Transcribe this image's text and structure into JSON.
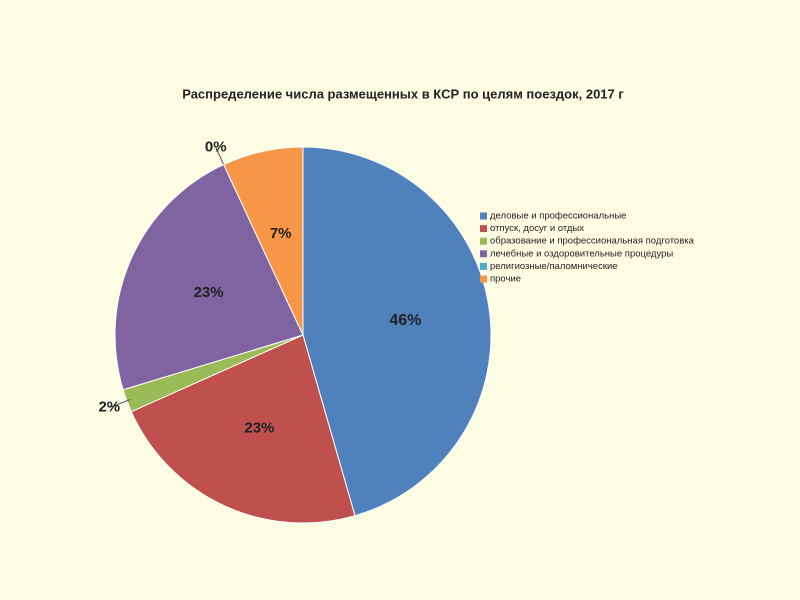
{
  "chart_data": {
    "type": "pie",
    "title": "Распределение числа размещенных в КСР по целям поездок, 2017 г",
    "categories": [
      "деловые и профессиональные",
      "отпуск, досуг и отдых",
      "образование и профессиональная подготовка",
      "лечебные и оздоровительные процедуры",
      "религиозные/паломнические",
      "прочие"
    ],
    "values": [
      46,
      23,
      2,
      23,
      0,
      7
    ],
    "value_labels": [
      "46%",
      "23%",
      "2%",
      "23%",
      "0%",
      "7%"
    ],
    "colors": [
      "#4f81bd",
      "#c0504d",
      "#9bbb59",
      "#8064a2",
      "#4bacc6",
      "#f79646"
    ],
    "legend": "right"
  }
}
